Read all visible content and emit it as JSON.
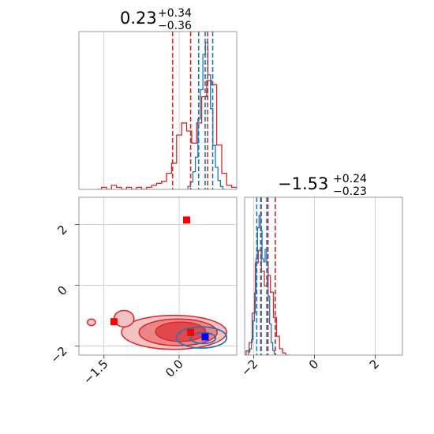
{
  "chart_data": {
    "type": "corner",
    "parameters": [
      {
        "title": {
          "median": "0.23",
          "plus": "+0.34",
          "minus": "−0.36"
        },
        "range": [
          -2.0,
          1.15
        ],
        "ticks": [
          -1.5,
          0.0
        ],
        "tick_labels": [
          "−1.5",
          "0.0"
        ],
        "quantiles": {
          "red": [
            -0.13,
            0.23,
            0.57
          ],
          "blue": [
            0.39,
            0.52,
            0.67
          ]
        },
        "hist_red": {
          "x": [
            -1.6,
            -1.5,
            -1.4,
            -1.3,
            -1.2,
            -1.1,
            -1.0,
            -0.9,
            -0.8,
            -0.7,
            -0.6,
            -0.5,
            -0.4,
            -0.3,
            -0.2,
            -0.1,
            0.0,
            0.1,
            0.2,
            0.3,
            0.4,
            0.5,
            0.6,
            0.7,
            0.8,
            0.9,
            1.0,
            1.1
          ],
          "y": [
            0,
            1,
            0,
            2,
            1,
            0,
            1,
            0,
            1,
            0,
            1,
            2,
            3,
            4,
            8,
            13,
            27,
            33,
            29,
            23,
            33,
            46,
            54,
            52,
            22,
            8,
            2,
            1
          ]
        },
        "hist_blue": {
          "x": [
            0.2,
            0.25,
            0.3,
            0.35,
            0.4,
            0.45,
            0.5,
            0.55,
            0.6,
            0.65,
            0.7,
            0.75,
            0.8,
            0.85,
            0.9
          ],
          "y": [
            2,
            5,
            12,
            22,
            48,
            68,
            92,
            100,
            78,
            55,
            30,
            15,
            6,
            2,
            0
          ]
        }
      },
      {
        "title": {
          "median": "−1.53",
          "plus": "+0.24",
          "minus": "−0.23"
        },
        "range": [
          -2.3,
          2.9
        ],
        "ticks": [
          -2,
          0,
          2
        ],
        "tick_labels": [
          "−2",
          "0",
          "2"
        ],
        "quantiles": {
          "red": [
            -1.77,
            -1.53,
            -1.29
          ],
          "blue": [
            -1.9,
            -1.75,
            -1.57
          ]
        },
        "hist_red": {
          "x": [
            -2.2,
            -2.1,
            -2.0,
            -1.9,
            -1.8,
            -1.7,
            -1.6,
            -1.5,
            -1.4,
            -1.3,
            -1.2,
            -1.1,
            -1.0,
            -0.9
          ],
          "y": [
            2,
            6,
            20,
            44,
            50,
            40,
            33,
            38,
            30,
            18,
            9,
            3,
            1,
            0
          ]
        },
        "hist_blue": {
          "x": [
            -2.15,
            -2.1,
            -2.05,
            -2.0,
            -1.95,
            -1.9,
            -1.85,
            -1.8,
            -1.75,
            -1.7,
            -1.65,
            -1.6,
            -1.55,
            -1.5,
            -1.45,
            -1.4,
            -1.35,
            -1.3
          ],
          "y": [
            2,
            4,
            10,
            22,
            40,
            62,
            82,
            90,
            80,
            62,
            60,
            68,
            60,
            38,
            20,
            8,
            3,
            1
          ]
        }
      }
    ],
    "scatter_2d": {
      "red_markers": [
        {
          "x": 0.15,
          "y": 2.15
        },
        {
          "x": -1.3,
          "y": -1.2
        },
        {
          "x": 0.23,
          "y": -1.55
        }
      ],
      "blue_markers": [
        {
          "x": 0.52,
          "y": -1.7
        }
      ],
      "red_contours": [
        {
          "cx": -0.1,
          "cy": -1.55,
          "rx": 1.05,
          "ry": 0.56,
          "level": 1
        },
        {
          "cx": -0.02,
          "cy": -1.55,
          "rx": 0.78,
          "ry": 0.44,
          "level": 2
        },
        {
          "cx": 0.03,
          "cy": -1.53,
          "rx": 0.5,
          "ry": 0.32,
          "level": 3
        }
      ],
      "red_islands": [
        {
          "cx": -1.1,
          "cy": -1.1,
          "rx": 0.2,
          "ry": 0.27
        },
        {
          "cx": -1.75,
          "cy": -1.22,
          "rx": 0.08,
          "ry": 0.11
        }
      ],
      "blue_contours": [
        {
          "cx": 0.45,
          "cy": -1.72,
          "rx": 0.5,
          "ry": 0.35
        },
        {
          "cx": 0.48,
          "cy": -1.74,
          "rx": 0.25,
          "ry": 0.18
        }
      ]
    },
    "colors": {
      "red": "#d62728",
      "blue": "#1f77b4",
      "marker_red": "#ff0000",
      "marker_blue": "#0000ff"
    }
  }
}
